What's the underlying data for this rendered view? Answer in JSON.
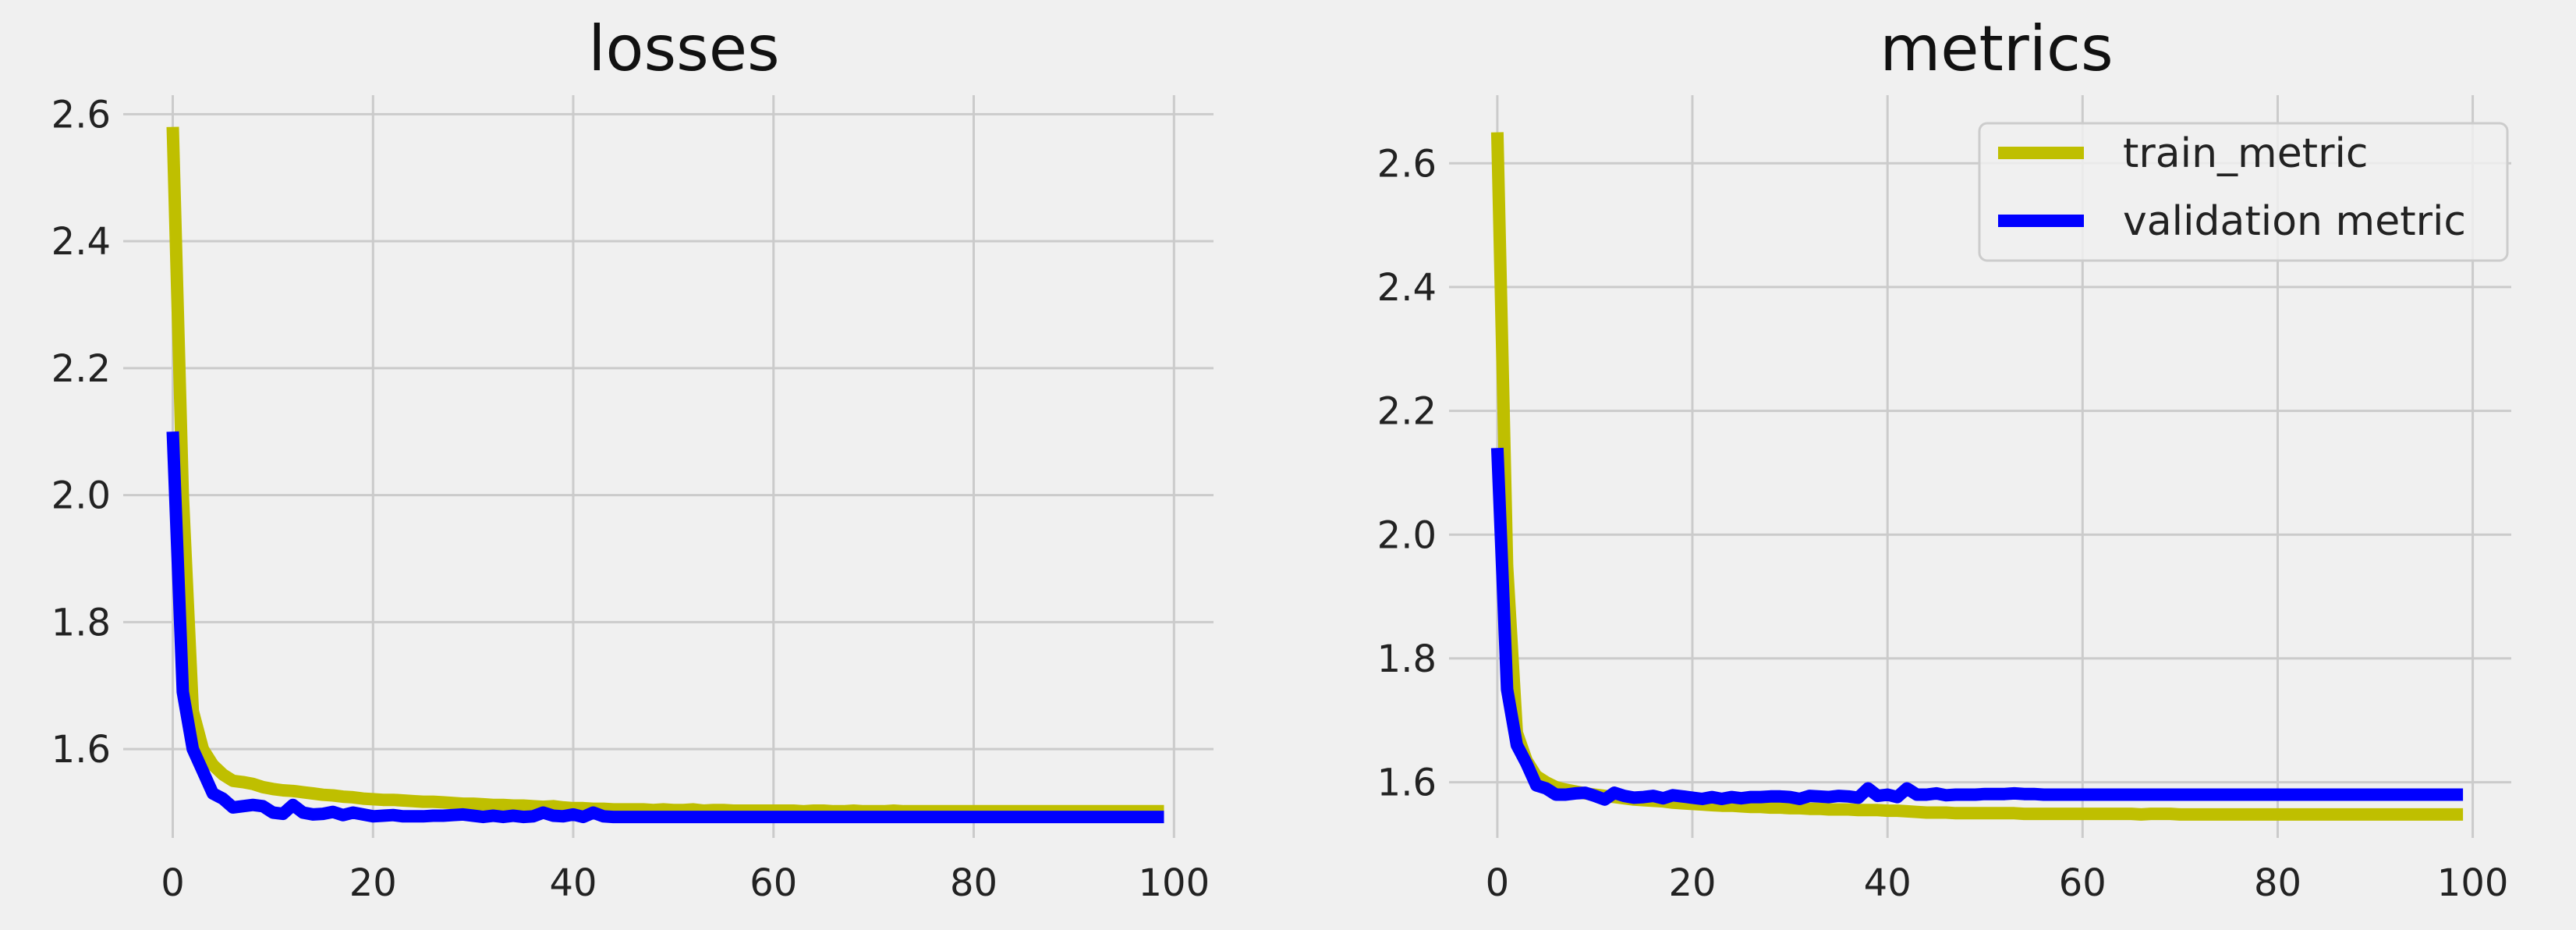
{
  "chart_data": [
    {
      "type": "line",
      "title": "losses",
      "xlabel": "",
      "ylabel": "",
      "xlim": [
        -4.95,
        103.95
      ],
      "ylim": [
        1.46,
        2.63
      ],
      "xticks": [
        0,
        20,
        40,
        60,
        80,
        100
      ],
      "yticks": [
        1.6,
        1.8,
        2.0,
        2.2,
        2.4,
        2.6
      ],
      "xtick_labels": [
        "0",
        "20",
        "40",
        "60",
        "80",
        "100"
      ],
      "ytick_labels": [
        "1.6",
        "1.8",
        "2.0",
        "2.2",
        "2.4",
        "2.6"
      ],
      "grid": true,
      "legend": "none",
      "series": [
        {
          "color": "#bfbf00",
          "x": [
            0,
            1,
            2,
            3,
            4,
            5,
            6,
            7,
            8,
            9,
            10,
            11,
            12,
            13,
            14,
            15,
            16,
            17,
            18,
            19,
            20,
            21,
            22,
            23,
            24,
            25,
            26,
            27,
            28,
            29,
            30,
            31,
            32,
            33,
            34,
            35,
            36,
            37,
            38,
            39,
            40,
            41,
            42,
            43,
            44,
            45,
            46,
            47,
            48,
            49,
            50,
            51,
            52,
            53,
            54,
            55,
            56,
            57,
            58,
            59,
            60,
            61,
            62,
            63,
            64,
            65,
            66,
            67,
            68,
            69,
            70,
            71,
            72,
            73,
            74,
            75,
            76,
            77,
            78,
            79,
            80,
            81,
            82,
            83,
            84,
            85,
            86,
            87,
            88,
            89,
            90,
            91,
            92,
            93,
            94,
            95,
            96,
            97,
            98,
            99
          ],
          "values": [
            2.58,
            2.0,
            1.66,
            1.6,
            1.575,
            1.56,
            1.55,
            1.548,
            1.545,
            1.54,
            1.537,
            1.535,
            1.534,
            1.532,
            1.53,
            1.528,
            1.527,
            1.525,
            1.524,
            1.522,
            1.521,
            1.52,
            1.52,
            1.519,
            1.518,
            1.517,
            1.517,
            1.516,
            1.515,
            1.514,
            1.514,
            1.513,
            1.512,
            1.512,
            1.511,
            1.511,
            1.51,
            1.509,
            1.51,
            1.508,
            1.507,
            1.507,
            1.506,
            1.506,
            1.505,
            1.505,
            1.505,
            1.505,
            1.504,
            1.505,
            1.504,
            1.504,
            1.505,
            1.503,
            1.504,
            1.504,
            1.503,
            1.503,
            1.503,
            1.503,
            1.503,
            1.503,
            1.503,
            1.502,
            1.503,
            1.503,
            1.502,
            1.502,
            1.503,
            1.502,
            1.502,
            1.502,
            1.503,
            1.502,
            1.502,
            1.502,
            1.502,
            1.502,
            1.502,
            1.502,
            1.502,
            1.502,
            1.502,
            1.502,
            1.502,
            1.502,
            1.502,
            1.502,
            1.502,
            1.502,
            1.502,
            1.502,
            1.502,
            1.502,
            1.502,
            1.502,
            1.502,
            1.502,
            1.502,
            1.502
          ]
        },
        {
          "color": "#0000ff",
          "x": [
            0,
            1,
            2,
            3,
            4,
            5,
            6,
            7,
            8,
            9,
            10,
            11,
            12,
            13,
            14,
            15,
            16,
            17,
            18,
            19,
            20,
            21,
            22,
            23,
            24,
            25,
            26,
            27,
            28,
            29,
            30,
            31,
            32,
            33,
            34,
            35,
            36,
            37,
            38,
            39,
            40,
            41,
            42,
            43,
            44,
            45,
            46,
            47,
            48,
            49,
            50,
            51,
            52,
            53,
            54,
            55,
            56,
            57,
            58,
            59,
            60,
            61,
            62,
            63,
            64,
            65,
            66,
            67,
            68,
            69,
            70,
            71,
            72,
            73,
            74,
            75,
            76,
            77,
            78,
            79,
            80,
            81,
            82,
            83,
            84,
            85,
            86,
            87,
            88,
            89,
            90,
            91,
            92,
            93,
            94,
            95,
            96,
            97,
            98,
            99
          ],
          "values": [
            2.1,
            1.69,
            1.6,
            1.565,
            1.53,
            1.522,
            1.508,
            1.51,
            1.512,
            1.51,
            1.5,
            1.498,
            1.512,
            1.5,
            1.497,
            1.498,
            1.501,
            1.496,
            1.5,
            1.497,
            1.494,
            1.495,
            1.496,
            1.494,
            1.494,
            1.494,
            1.495,
            1.495,
            1.496,
            1.497,
            1.495,
            1.493,
            1.495,
            1.493,
            1.495,
            1.493,
            1.494,
            1.5,
            1.495,
            1.494,
            1.497,
            1.493,
            1.5,
            1.494,
            1.493,
            1.493,
            1.493,
            1.493,
            1.493,
            1.493,
            1.493,
            1.493,
            1.493,
            1.493,
            1.493,
            1.493,
            1.493,
            1.493,
            1.493,
            1.493,
            1.493,
            1.493,
            1.493,
            1.493,
            1.493,
            1.493,
            1.493,
            1.493,
            1.493,
            1.493,
            1.493,
            1.493,
            1.493,
            1.493,
            1.493,
            1.493,
            1.493,
            1.493,
            1.493,
            1.493,
            1.493,
            1.493,
            1.493,
            1.493,
            1.493,
            1.493,
            1.493,
            1.493,
            1.493,
            1.493,
            1.493,
            1.493,
            1.493,
            1.493,
            1.493,
            1.493,
            1.493,
            1.493,
            1.493,
            1.493
          ]
        }
      ]
    },
    {
      "type": "line",
      "title": "metrics",
      "xlabel": "",
      "ylabel": "",
      "xlim": [
        -4.95,
        103.95
      ],
      "ylim": [
        1.51,
        2.71
      ],
      "xticks": [
        0,
        20,
        40,
        60,
        80,
        100
      ],
      "yticks": [
        1.6,
        1.8,
        2.0,
        2.2,
        2.4,
        2.6
      ],
      "xtick_labels": [
        "0",
        "20",
        "40",
        "60",
        "80",
        "100"
      ],
      "ytick_labels": [
        "1.6",
        "1.8",
        "2.0",
        "2.2",
        "2.4",
        "2.6"
      ],
      "grid": true,
      "legend": "top-right",
      "series": [
        {
          "name": "train_metric",
          "color": "#bfbf00",
          "x": [
            0,
            1,
            2,
            3,
            4,
            5,
            6,
            7,
            8,
            9,
            10,
            11,
            12,
            13,
            14,
            15,
            16,
            17,
            18,
            19,
            20,
            21,
            22,
            23,
            24,
            25,
            26,
            27,
            28,
            29,
            30,
            31,
            32,
            33,
            34,
            35,
            36,
            37,
            38,
            39,
            40,
            41,
            42,
            43,
            44,
            45,
            46,
            47,
            48,
            49,
            50,
            51,
            52,
            53,
            54,
            55,
            56,
            57,
            58,
            59,
            60,
            61,
            62,
            63,
            64,
            65,
            66,
            67,
            68,
            69,
            70,
            71,
            72,
            73,
            74,
            75,
            76,
            77,
            78,
            79,
            80,
            81,
            82,
            83,
            84,
            85,
            86,
            87,
            88,
            89,
            90,
            91,
            92,
            93,
            94,
            95,
            96,
            97,
            98,
            99
          ],
          "values": [
            2.65,
            1.95,
            1.68,
            1.635,
            1.61,
            1.6,
            1.592,
            1.588,
            1.585,
            1.582,
            1.58,
            1.578,
            1.576,
            1.574,
            1.572,
            1.571,
            1.57,
            1.569,
            1.567,
            1.566,
            1.565,
            1.564,
            1.563,
            1.562,
            1.562,
            1.561,
            1.56,
            1.56,
            1.559,
            1.559,
            1.558,
            1.558,
            1.557,
            1.557,
            1.556,
            1.556,
            1.556,
            1.555,
            1.555,
            1.555,
            1.554,
            1.554,
            1.553,
            1.552,
            1.551,
            1.551,
            1.551,
            1.55,
            1.55,
            1.55,
            1.55,
            1.55,
            1.55,
            1.55,
            1.549,
            1.549,
            1.549,
            1.549,
            1.549,
            1.549,
            1.549,
            1.549,
            1.549,
            1.549,
            1.549,
            1.549,
            1.548,
            1.549,
            1.549,
            1.549,
            1.548,
            1.548,
            1.548,
            1.548,
            1.548,
            1.548,
            1.548,
            1.548,
            1.548,
            1.548,
            1.548,
            1.548,
            1.548,
            1.548,
            1.548,
            1.548,
            1.548,
            1.548,
            1.548,
            1.548,
            1.548,
            1.548,
            1.548,
            1.548,
            1.548,
            1.548,
            1.548,
            1.548,
            1.548,
            1.548
          ]
        },
        {
          "name": "validation metric",
          "color": "#0000ff",
          "x": [
            0,
            1,
            2,
            3,
            4,
            5,
            6,
            7,
            8,
            9,
            10,
            11,
            12,
            13,
            14,
            15,
            16,
            17,
            18,
            19,
            20,
            21,
            22,
            23,
            24,
            25,
            26,
            27,
            28,
            29,
            30,
            31,
            32,
            33,
            34,
            35,
            36,
            37,
            38,
            39,
            40,
            41,
            42,
            43,
            44,
            45,
            46,
            47,
            48,
            49,
            50,
            51,
            52,
            53,
            54,
            55,
            56,
            57,
            58,
            59,
            60,
            61,
            62,
            63,
            64,
            65,
            66,
            67,
            68,
            69,
            70,
            71,
            72,
            73,
            74,
            75,
            76,
            77,
            78,
            79,
            80,
            81,
            82,
            83,
            84,
            85,
            86,
            87,
            88,
            89,
            90,
            91,
            92,
            93,
            94,
            95,
            96,
            97,
            98,
            99
          ],
          "values": [
            2.14,
            1.75,
            1.66,
            1.63,
            1.595,
            1.59,
            1.58,
            1.58,
            1.582,
            1.583,
            1.578,
            1.572,
            1.583,
            1.578,
            1.575,
            1.576,
            1.578,
            1.574,
            1.579,
            1.577,
            1.575,
            1.573,
            1.576,
            1.573,
            1.576,
            1.574,
            1.576,
            1.576,
            1.577,
            1.577,
            1.576,
            1.573,
            1.578,
            1.577,
            1.576,
            1.578,
            1.577,
            1.575,
            1.59,
            1.578,
            1.58,
            1.576,
            1.59,
            1.58,
            1.58,
            1.582,
            1.579,
            1.58,
            1.58,
            1.58,
            1.581,
            1.581,
            1.581,
            1.582,
            1.581,
            1.581,
            1.58,
            1.58,
            1.58,
            1.58,
            1.58,
            1.58,
            1.58,
            1.58,
            1.58,
            1.58,
            1.58,
            1.58,
            1.58,
            1.58,
            1.58,
            1.58,
            1.58,
            1.58,
            1.58,
            1.58,
            1.58,
            1.58,
            1.58,
            1.58,
            1.58,
            1.58,
            1.58,
            1.58,
            1.58,
            1.58,
            1.58,
            1.58,
            1.58,
            1.58,
            1.58,
            1.58,
            1.58,
            1.58,
            1.58,
            1.58,
            1.58,
            1.58,
            1.58,
            1.58
          ]
        }
      ]
    }
  ]
}
